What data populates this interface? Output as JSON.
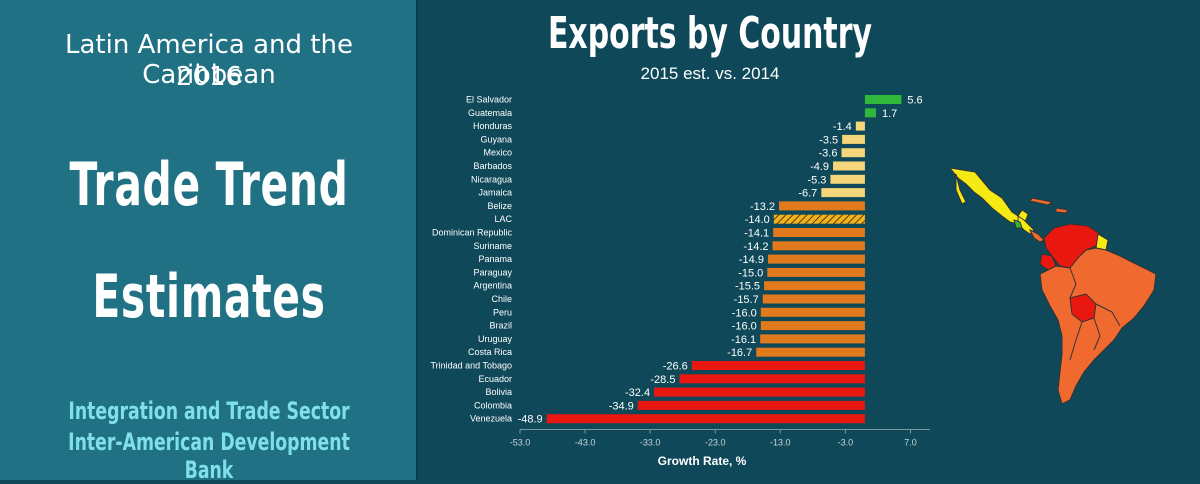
{
  "left_panel": {
    "region": "Latin America and the Caribbean",
    "year": "2016",
    "headline_line1": "Trade Trend",
    "headline_line2": "Estimates",
    "sector": "Integration and Trade Sector",
    "bank": "Inter-American Development Bank"
  },
  "colors": {
    "background": "#0f4858",
    "left_panel": "#1f7183",
    "green": "#2fb83a",
    "light_yellow": "#f5d67a",
    "orange": "#e07a1c",
    "red": "#e8170f",
    "hatch": "#f2b21c",
    "subtitle_cyan": "#7fe0ea"
  },
  "chart_data": {
    "type": "bar",
    "orientation": "horizontal",
    "title": "Exports by Country",
    "subtitle": "2015 est. vs. 2014",
    "xlabel": "Growth Rate, %",
    "ylabel": "",
    "xlim": [
      -53,
      10
    ],
    "xticks": [
      -53.0,
      -43.0,
      -33.0,
      -23.0,
      -13.0,
      -3.0,
      7.0
    ],
    "grid": false,
    "categories": [
      "El Salvador",
      "Guatemala",
      "Honduras",
      "Guyana",
      "Mexico",
      "Barbados",
      "Nicaragua",
      "Jamaica",
      "Belize",
      "LAC",
      "Dominican Republic",
      "Suriname",
      "Panama",
      "Paraguay",
      "Argentina",
      "Chile",
      "Peru",
      "Brazil",
      "Uruguay",
      "Costa Rica",
      "Trinidad and Tobago",
      "Ecuador",
      "Bolivia",
      "Colombia",
      "Venezuela"
    ],
    "values": [
      5.6,
      1.7,
      -1.4,
      -3.5,
      -3.6,
      -4.9,
      -5.3,
      -6.7,
      -13.2,
      -14.0,
      -14.1,
      -14.2,
      -14.9,
      -15.0,
      -15.5,
      -15.7,
      -16.0,
      -16.0,
      -16.1,
      -16.7,
      -26.6,
      -28.5,
      -32.4,
      -34.9,
      -48.9
    ],
    "value_labels": [
      "5.6",
      "1.7",
      "-1.4",
      "-3.5",
      "-3.6",
      "-4.9",
      "-5.3",
      "-6.7",
      "-13.2",
      "-14.0",
      "-14.1",
      "-14.2",
      "-14.9",
      "-15.0",
      "-15.5",
      "-15.7",
      "-16.0",
      "-16.0",
      "-16.1",
      "-16.7",
      "-26.6",
      "-28.5",
      "-32.4",
      "-34.9",
      "-48.9"
    ],
    "bar_colors": [
      "green",
      "green",
      "light_yellow",
      "light_yellow",
      "light_yellow",
      "light_yellow",
      "light_yellow",
      "light_yellow",
      "orange",
      "hatch",
      "orange",
      "orange",
      "orange",
      "orange",
      "orange",
      "orange",
      "orange",
      "orange",
      "orange",
      "orange",
      "red",
      "red",
      "red",
      "red",
      "red"
    ]
  }
}
